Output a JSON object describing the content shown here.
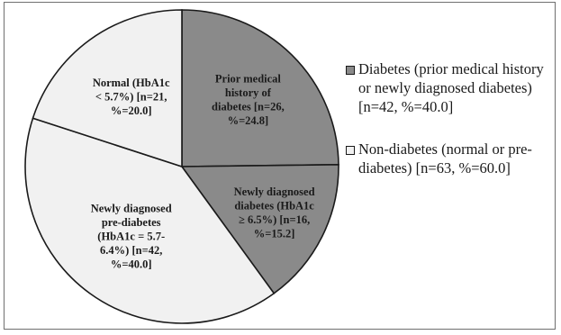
{
  "chart_data": {
    "type": "pie",
    "slices": [
      {
        "label_lines": [
          "Prior medical",
          "history of",
          "diabetes [n=26,",
          "%=24.8]"
        ],
        "n": 26,
        "percent": 24.8,
        "group": "diabetes",
        "color": "#8a8a8a"
      },
      {
        "label_lines": [
          "Newly diagnosed",
          "diabetes (HbA1c",
          "≥ 6.5%) [n=16,",
          "%=15.2]"
        ],
        "n": 16,
        "percent": 15.2,
        "group": "diabetes",
        "color": "#8a8a8a"
      },
      {
        "label_lines": [
          "Newly diagnosed",
          "pre-diabetes",
          "(HbA1c = 5.7-",
          "6.4%) [n=42,",
          "%=40.0]"
        ],
        "n": 42,
        "percent": 40.0,
        "group": "non-diabetes",
        "color": "#f1f1f1"
      },
      {
        "label_lines": [
          "Normal (HbA1c",
          "< 5.7%) [n=21,",
          "%=20.0]"
        ],
        "n": 21,
        "percent": 20.0,
        "group": "non-diabetes",
        "color": "#f1f1f1"
      }
    ],
    "legend": [
      {
        "text": "Diabetes (prior medical history or newly diagnosed diabetes) [n=42, %=40.0]",
        "color": "#8a8a8a"
      },
      {
        "text": "Non-diabetes (normal or pre-diabetes) [n=63, %=60.0]",
        "color": "#f1f1f1"
      }
    ],
    "legend_position": "right"
  }
}
